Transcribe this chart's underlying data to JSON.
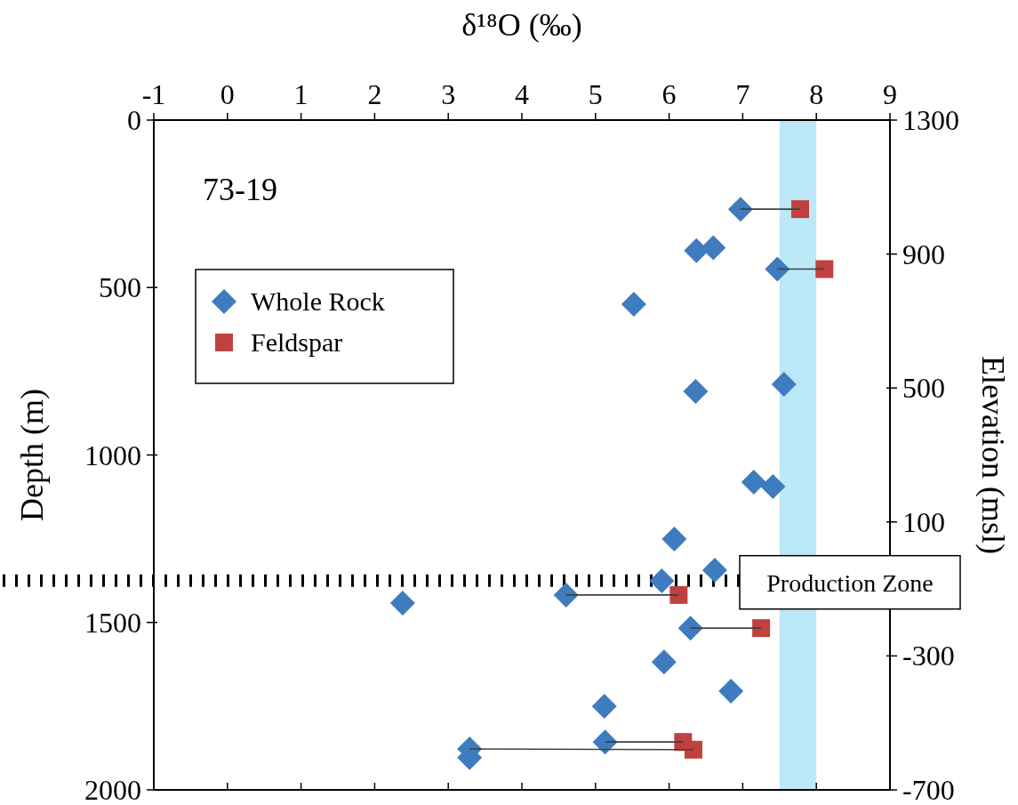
{
  "chart_data": {
    "type": "scatter",
    "xlabel": "δ¹⁸O (‰)",
    "ylabel": "Depth (m)",
    "y2label": "Elevation (msl)",
    "xlim": [
      -1,
      9
    ],
    "xticks": [
      -1,
      0,
      1,
      2,
      3,
      4,
      5,
      6,
      7,
      8,
      9
    ],
    "ylim": [
      2000,
      0
    ],
    "yticks": [
      0,
      500,
      1000,
      1500,
      2000
    ],
    "y2lim": [
      -700,
      1300
    ],
    "y2ticks": [
      1300,
      900,
      500,
      100,
      -300,
      -700
    ],
    "annotations": [
      "73-19"
    ],
    "legend": "left",
    "grid": false,
    "bands": [
      {
        "axis": "x",
        "from": 7.5,
        "to": 8,
        "color": "#bce8f7"
      }
    ],
    "ref_lines": [
      {
        "axis": "y",
        "value": 1375,
        "label": "Production Zone",
        "color": "#000000",
        "line_style": "dotted"
      }
    ],
    "series": [
      {
        "type": "line",
        "color": "#404040",
        "marker": "none",
        "x": [
          6.97,
          7.78
        ],
        "values": [
          266,
          266
        ]
      },
      {
        "type": "line",
        "color": "#404040",
        "marker": "none",
        "x": [
          7.47,
          8.11
        ],
        "values": [
          445,
          445
        ]
      },
      {
        "type": "line",
        "color": "#404040",
        "marker": "none",
        "x": [
          4.6,
          6.13
        ],
        "values": [
          1418,
          1418
        ]
      },
      {
        "type": "line",
        "color": "#404040",
        "marker": "none",
        "x": [
          6.29,
          7.25
        ],
        "values": [
          1517,
          1517
        ]
      },
      {
        "type": "line",
        "color": "#404040",
        "marker": "none",
        "x": [
          5.13,
          6.19
        ],
        "values": [
          1857,
          1857
        ]
      },
      {
        "type": "line",
        "color": "#404040",
        "marker": "none",
        "x": [
          3.29,
          6.33
        ],
        "values": [
          1878,
          1880
        ]
      },
      {
        "name": "Whole Rock",
        "color": "#3f7bbf",
        "marker": "diamond",
        "x": [
          6.97,
          6.37,
          6.6,
          7.47,
          5.52,
          6.36,
          7.56,
          7.15,
          7.41,
          6.07,
          6.62,
          5.9,
          4.6,
          6.29,
          2.38,
          5.93,
          6.84,
          5.12,
          5.13,
          3.29,
          3.29
        ],
        "values": [
          266,
          390,
          381,
          445,
          550,
          810,
          789,
          1081,
          1094,
          1251,
          1344,
          1376,
          1418,
          1517,
          1442,
          1618,
          1705,
          1750,
          1857,
          1878,
          1904
        ]
      },
      {
        "name": "Feldspar",
        "color": "#c0413f",
        "marker": "square",
        "x": [
          7.78,
          8.11,
          6.13,
          7.25,
          6.19,
          6.33
        ],
        "values": [
          266,
          445,
          1418,
          1517,
          1857,
          1880
        ]
      }
    ]
  }
}
